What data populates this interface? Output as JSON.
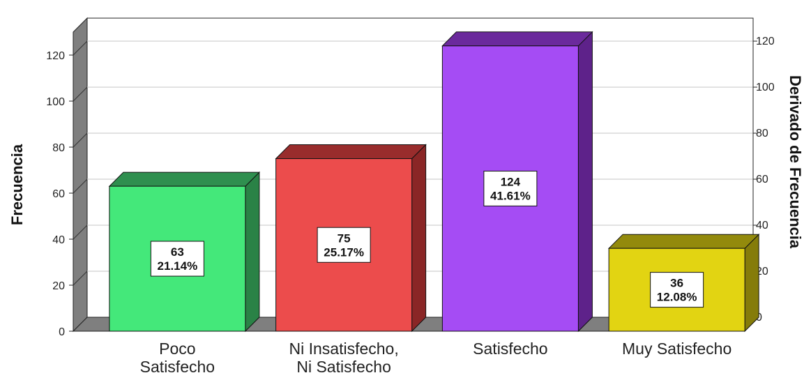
{
  "chart_data": {
    "type": "bar",
    "categories": [
      [
        "Poco",
        "Satisfecho"
      ],
      [
        "Ni Insatisfecho,",
        "Ni Satisfecho"
      ],
      [
        "Satisfecho"
      ],
      [
        "Muy Satisfecho"
      ]
    ],
    "values": [
      63,
      75,
      124,
      36
    ],
    "percent_labels": [
      "21.14%",
      "25.17%",
      "41.61%",
      "12.08%"
    ],
    "colors": [
      {
        "front": "#44e87a",
        "top": "#2f8f4f",
        "side": "#2a8246"
      },
      {
        "front": "#ec4c4c",
        "top": "#992c2c",
        "side": "#8a2626"
      },
      {
        "front": "#a54cf4",
        "top": "#6b2a9c",
        "side": "#5e228a"
      },
      {
        "front": "#e2d412",
        "top": "#938a0c",
        "side": "#857c0a"
      }
    ],
    "ylabel": "Frecuencia",
    "y2label": "Derivado de Frecuencia",
    "ylim": [
      0,
      130
    ],
    "yticks": [
      0,
      20,
      40,
      60,
      80,
      100,
      120
    ],
    "y2ticks": [
      0,
      20,
      40,
      60,
      80,
      100,
      120
    ],
    "grid": true
  }
}
